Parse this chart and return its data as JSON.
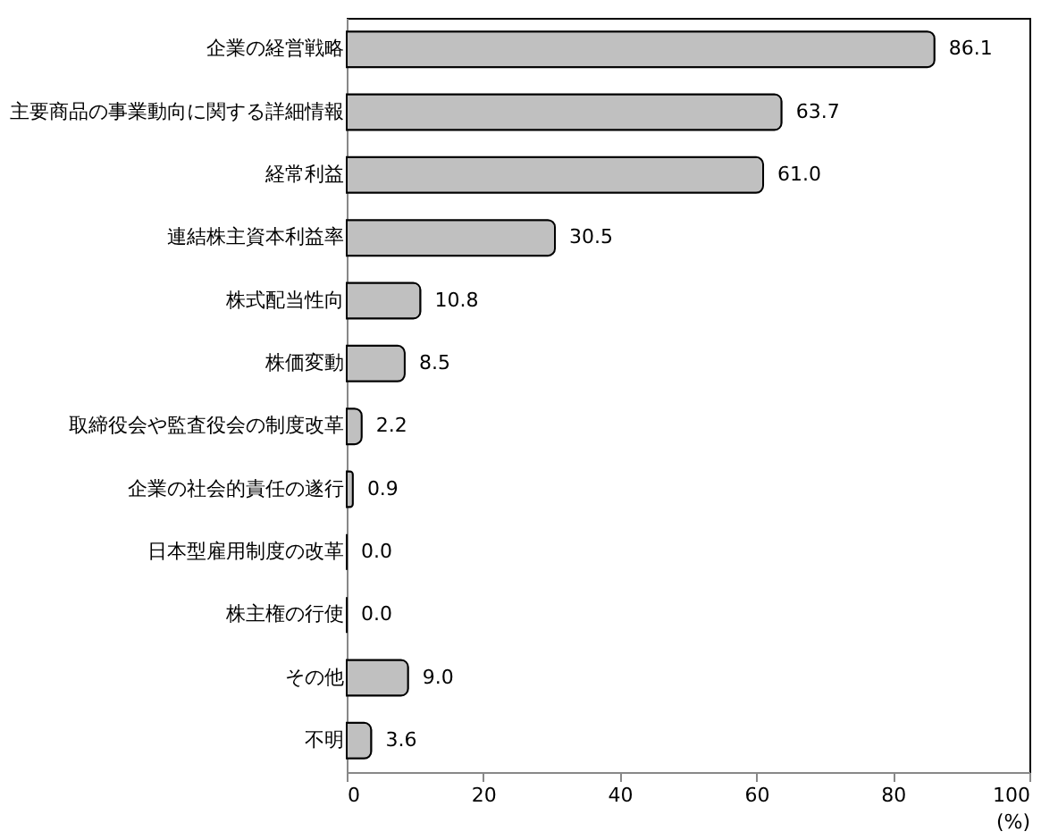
{
  "chart_data": {
    "type": "bar",
    "orientation": "horizontal",
    "xlabel": "(%)",
    "categories": [
      "企業の経営戦略",
      "主要商品の事業動向に関する詳細情報",
      "経常利益",
      "連結株主資本利益率",
      "株式配当性向",
      "株価変動",
      "取締役会や監査役会の制度改革",
      "企業の社会的責任の遂行",
      "日本型雇用制度の改革",
      "株主権の行使",
      "その他",
      "不明"
    ],
    "values": [
      86.1,
      63.7,
      61.0,
      30.5,
      10.8,
      8.5,
      2.2,
      0.9,
      0.0,
      0.0,
      9.0,
      3.6
    ],
    "value_labels": [
      "86.1",
      "63.7",
      "61.0",
      "30.5",
      "10.8",
      "8.5",
      "2.2",
      "0.9",
      "0.0",
      "0.0",
      "9.0",
      "3.6"
    ],
    "color": "#c0c0c0",
    "xlim": [
      0,
      100
    ],
    "xticks": [
      0,
      20,
      40,
      60,
      80,
      100
    ],
    "grid": false
  }
}
